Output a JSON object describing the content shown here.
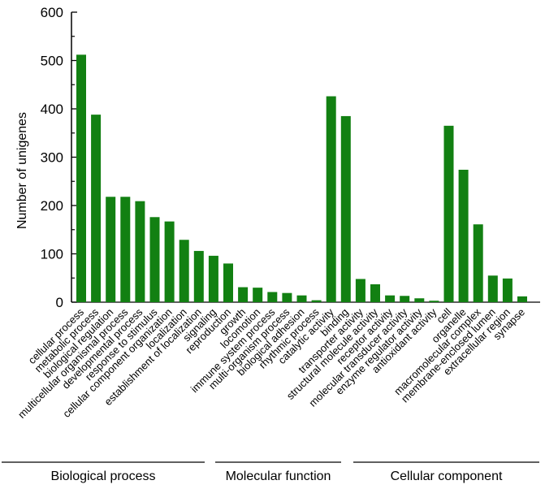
{
  "chart_data": {
    "type": "bar",
    "ylabel": "Number of unigenes",
    "xlabel": "",
    "ylim": [
      0,
      600
    ],
    "yticks": [
      0,
      100,
      200,
      300,
      400,
      500,
      600
    ],
    "bar_color": "#128012",
    "categories": [
      "cellular process",
      "metabolic process",
      "biological regulation",
      "multicellular organismal process",
      "developmental process",
      "response to stimulus",
      "cellular component organization",
      "localization",
      "establishment of localization",
      "signaling",
      "reproduction",
      "growth",
      "locomotion",
      "immune system process",
      "multi-organism process",
      "biological adhesion",
      "rhythmic process",
      "catalytic activity",
      "binding",
      "transporter activity",
      "structural molecule activity",
      "receptor activity",
      "molecular transducer activity",
      "enzyme regulator activity",
      "antioxidant activity",
      "cell",
      "organelle",
      "macromolecular complex",
      "membrane-enclosed lumen",
      "extracellular region",
      "synapse"
    ],
    "values": [
      512,
      388,
      218,
      218,
      209,
      176,
      167,
      129,
      106,
      96,
      80,
      31,
      30,
      21,
      19,
      14,
      4,
      426,
      385,
      48,
      37,
      14,
      13,
      8,
      3,
      365,
      274,
      161,
      55,
      49,
      12
    ],
    "groups": [
      {
        "name": "Biological process",
        "start": 0,
        "end": 16
      },
      {
        "name": "Molecular function",
        "start": 17,
        "end": 24
      },
      {
        "name": "Cellular component",
        "start": 25,
        "end": 30
      }
    ]
  }
}
